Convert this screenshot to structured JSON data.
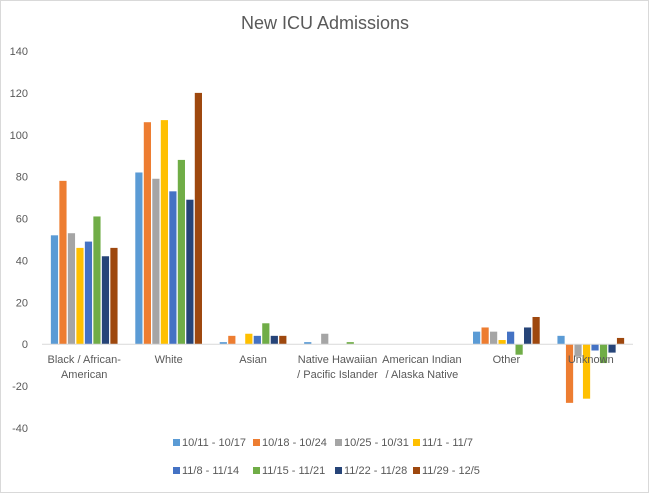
{
  "chart_data": {
    "type": "bar",
    "title": "New ICU Admissions",
    "xlabel": "",
    "ylabel": "",
    "ylim": [
      -40,
      140
    ],
    "yticks": [
      -40,
      -20,
      0,
      20,
      40,
      60,
      80,
      100,
      120,
      140
    ],
    "grid": false,
    "legend_position": "bottom",
    "categories": [
      [
        "Black / African-",
        "American"
      ],
      [
        "White"
      ],
      [
        "Asian"
      ],
      [
        "Native Hawaiian",
        "/ Pacific Islander"
      ],
      [
        "American Indian",
        "/ Alaska Native"
      ],
      [
        "Other"
      ],
      [
        "Unknown"
      ]
    ],
    "series": [
      {
        "name": "10/11 - 10/17",
        "color": "#5B9BD5",
        "values": [
          52,
          82,
          1,
          1,
          0,
          6,
          4
        ]
      },
      {
        "name": "10/18 - 10/24",
        "color": "#ED7D31",
        "values": [
          78,
          106,
          4,
          0,
          0,
          8,
          -28
        ]
      },
      {
        "name": "10/25 - 10/31",
        "color": "#A5A5A5",
        "values": [
          53,
          79,
          0,
          5,
          0,
          6,
          -6
        ]
      },
      {
        "name": "11/1 - 11/7",
        "color": "#FFC000",
        "values": [
          46,
          107,
          5,
          0,
          0,
          2,
          -26
        ]
      },
      {
        "name": "11/8 - 11/14",
        "color": "#4472C4",
        "values": [
          49,
          73,
          4,
          0,
          0,
          6,
          -3
        ]
      },
      {
        "name": "11/15 - 11/21",
        "color": "#70AD47",
        "values": [
          61,
          88,
          10,
          1,
          0,
          -5,
          -9
        ]
      },
      {
        "name": "11/22 - 11/28",
        "color": "#264478",
        "values": [
          42,
          69,
          4,
          0,
          0,
          8,
          -4
        ]
      },
      {
        "name": "11/29 - 12/5",
        "color": "#9E480E",
        "values": [
          46,
          120,
          4,
          0,
          0,
          13,
          3
        ]
      }
    ]
  }
}
